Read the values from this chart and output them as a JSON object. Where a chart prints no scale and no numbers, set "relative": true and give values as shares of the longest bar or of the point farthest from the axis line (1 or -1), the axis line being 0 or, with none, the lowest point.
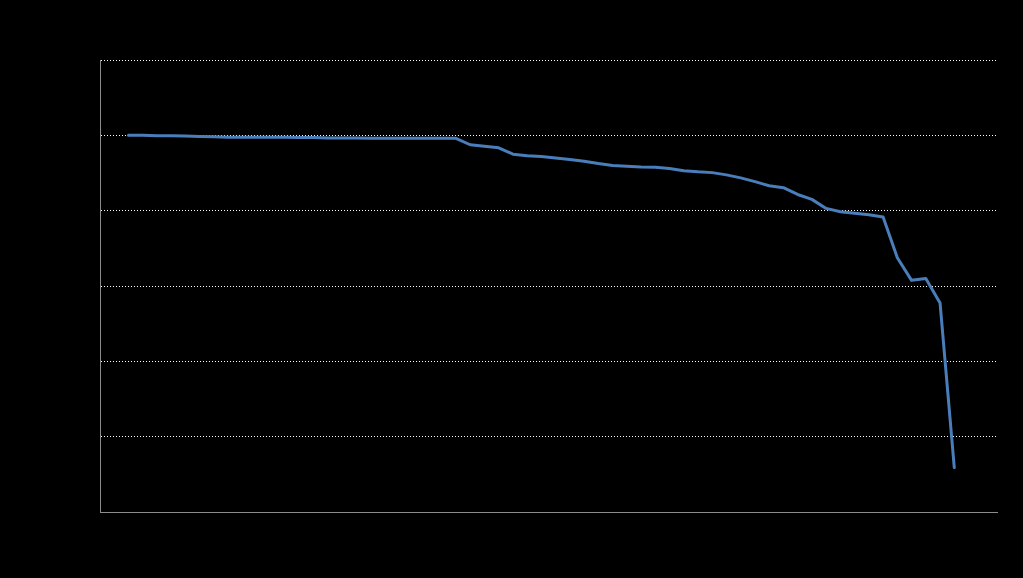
{
  "chart_data": {
    "type": "line",
    "relative": true,
    "grid": "y",
    "legend": false,
    "marker": "none",
    "categories": [
      null,
      null,
      null,
      null,
      null,
      null,
      null,
      null,
      null,
      null,
      null,
      null,
      null,
      null,
      null,
      null,
      null,
      null,
      null,
      null,
      null,
      null,
      null,
      null,
      null,
      null,
      null,
      null,
      null,
      null,
      null,
      null,
      null,
      null,
      null,
      null,
      null,
      null,
      null,
      null,
      null,
      null,
      null,
      null,
      null,
      null,
      null,
      null,
      null,
      null,
      null,
      null,
      null,
      null,
      null,
      null,
      null,
      null,
      null,
      null,
      null,
      null,
      null,
      null
    ],
    "series": [
      {
        "color": "#4a7ebb",
        "values": [
          null,
          null,
          1.0,
          1.0,
          0.999,
          0.999,
          0.998,
          0.997,
          0.996,
          0.995,
          0.995,
          0.995,
          0.995,
          0.995,
          0.994,
          0.994,
          0.993,
          0.993,
          0.993,
          0.992,
          0.992,
          0.992,
          0.992,
          0.992,
          0.992,
          0.992,
          0.975,
          0.971,
          0.967,
          0.95,
          0.946,
          0.944,
          0.94,
          0.936,
          0.931,
          0.925,
          0.92,
          0.918,
          0.916,
          0.915,
          0.912,
          0.906,
          0.903,
          0.901,
          0.895,
          0.887,
          0.877,
          0.866,
          0.861,
          0.843,
          0.83,
          0.806,
          0.797,
          0.793,
          0.789,
          0.783,
          0.675,
          0.615,
          0.62,
          0.555,
          0.118,
          null,
          null,
          null
        ]
      }
    ]
  }
}
